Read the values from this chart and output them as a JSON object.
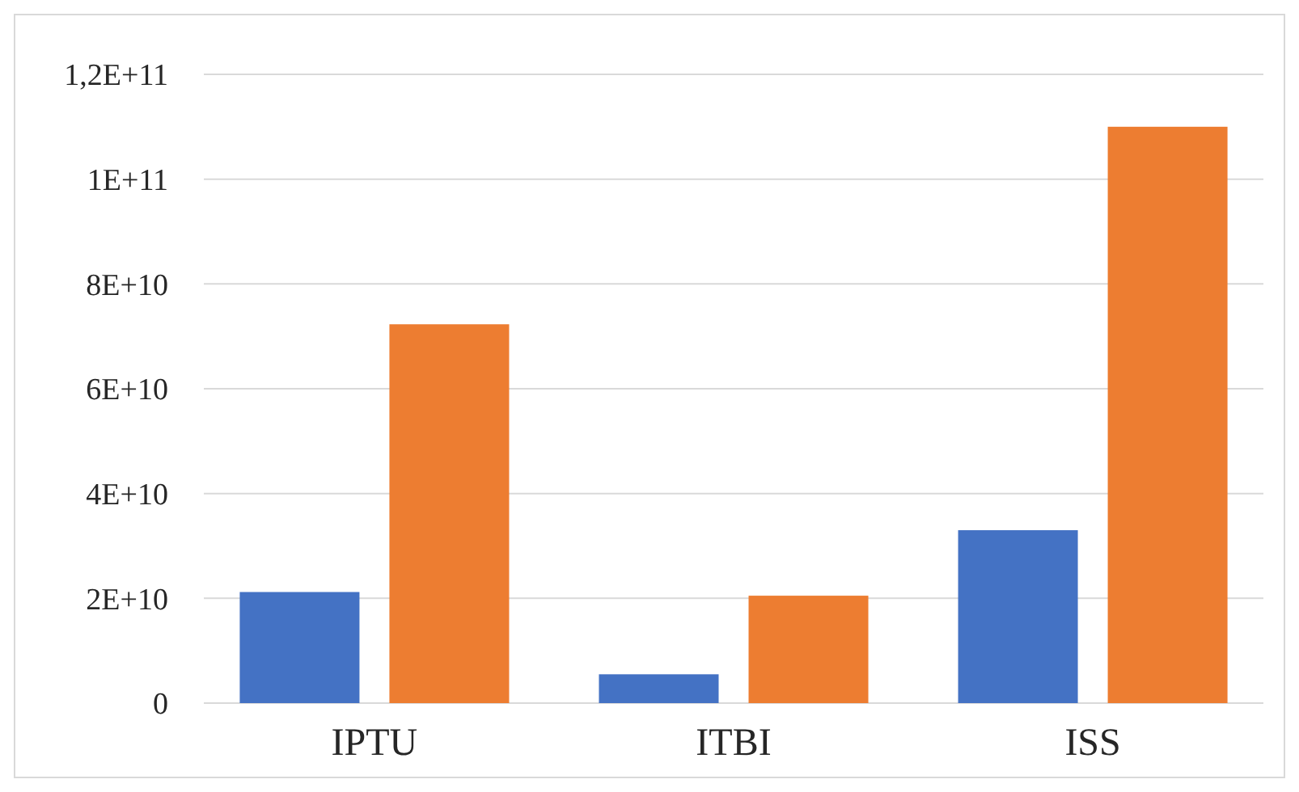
{
  "chart_data": {
    "type": "bar",
    "categories": [
      "IPTU",
      "ITBI",
      "ISS"
    ],
    "series": [
      {
        "color": "#4472c4",
        "values": [
          21200000000,
          5500000000,
          33000000000
        ]
      },
      {
        "color": "#ed7d31",
        "values": [
          72300000000,
          20500000000,
          110000000000
        ]
      }
    ],
    "ylim": [
      0,
      120000000000
    ],
    "yticks": [
      0,
      {
        "value": 20000000000,
        "label": "2E+10"
      },
      {
        "value": 40000000000,
        "label": "4E+10"
      },
      {
        "value": 60000000000,
        "label": "6E+10"
      },
      {
        "value": 80000000000,
        "label": "8E+10"
      },
      {
        "value": 100000000000,
        "label": "1E+11"
      },
      {
        "value": 120000000000,
        "label": "1,2E+11"
      }
    ],
    "grid": "y"
  }
}
